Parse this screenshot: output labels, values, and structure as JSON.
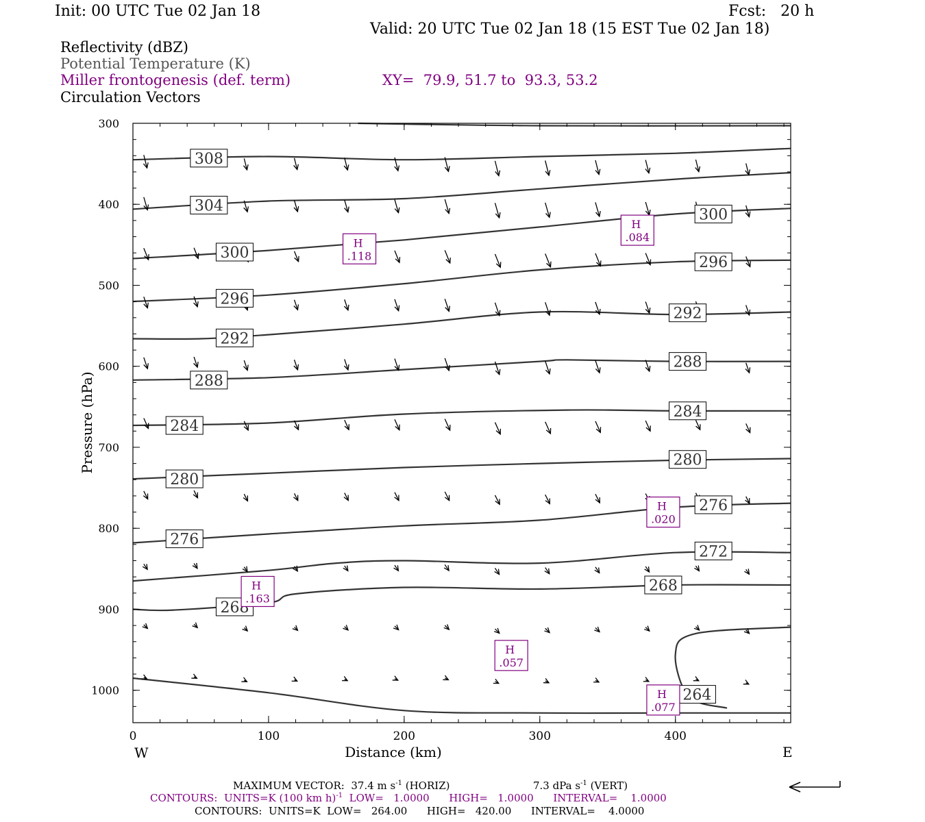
{
  "header": {
    "init": "Init: 00 UTC Tue 02 Jan 18",
    "fcst": "Fcst:   20 h",
    "valid": "Valid: 20 UTC Tue 02 Jan 18 (15 EST Tue 02 Jan 18)"
  },
  "legend": {
    "line1": "Reflectivity (dBZ)",
    "line2": "Potential Temperature (K)",
    "line3": "Miller frontogenesis (def. term)",
    "xy": "XY=  79.9, 51.7 to  93.3, 53.2",
    "line4": "Circulation Vectors"
  },
  "footer": {
    "max_vector_a": "MAXIMUM VECTOR:  37.4 m s",
    "max_vector_a_sup": "-1",
    "max_vector_b": " (HORIZ)",
    "max_vector_c": "7.3 dPa s",
    "max_vector_c_sup": "-1",
    "max_vector_d": " (VERT)",
    "contours1_a": "CONTOURS:  UNITS=K (100 km h)",
    "contours1_sup": "-1",
    "contours1_b": "  LOW=   1.0000      HIGH=   1.0000      INTERVAL=    1.0000",
    "contours2": "CONTOURS:  UNITS=K  LOW=   264.00      HIGH=   420.00      INTERVAL=    4.0000"
  },
  "colors": {
    "theta": "#333333",
    "frontogenesis": "#800080",
    "vectors": "#000000"
  },
  "chart_data": {
    "type": "cross-section",
    "ylabel": "Pressure (hPa)",
    "xlabel": "Distance (km)",
    "x_left_label": "W",
    "x_right_label": "E",
    "xlim": [
      0,
      485
    ],
    "ylim": [
      1040,
      300
    ],
    "y_scale": "linear, inverted",
    "xticks": [
      0,
      100,
      200,
      300,
      400
    ],
    "yticks": [
      300,
      400,
      500,
      600,
      700,
      800,
      900,
      1000
    ],
    "theta_contours": [
      {
        "level": 308,
        "label": "308",
        "label_at": [
          56,
          343
        ],
        "points": [
          [
            0,
            345
          ],
          [
            100,
            341
          ],
          [
            200,
            345
          ],
          [
            300,
            341
          ],
          [
            400,
            337
          ],
          [
            485,
            331
          ]
        ]
      },
      {
        "level": 304,
        "label": "304",
        "label_at": [
          56,
          401
        ],
        "points": [
          [
            0,
            406
          ],
          [
            100,
            396
          ],
          [
            200,
            393
          ],
          [
            300,
            381
          ],
          [
            400,
            369
          ],
          [
            485,
            361
          ]
        ]
      },
      {
        "level": 300,
        "label": "300",
        "label_at": [
          75,
          459
        ],
        "points": [
          [
            0,
            467
          ],
          [
            100,
            457
          ],
          [
            200,
            444
          ],
          [
            300,
            428
          ],
          [
            400,
            412
          ],
          [
            485,
            405
          ]
        ],
        "label2": "300",
        "label2_at": [
          428,
          412
        ]
      },
      {
        "level": 296,
        "label": "296",
        "label_at": [
          75,
          516
        ],
        "points": [
          [
            0,
            520
          ],
          [
            100,
            512
          ],
          [
            200,
            498
          ],
          [
            300,
            481
          ],
          [
            400,
            471
          ],
          [
            485,
            469
          ]
        ],
        "label2": "296",
        "label2_at": [
          428,
          471
        ]
      },
      {
        "level": 292,
        "label": "292",
        "label_at": [
          75,
          565
        ],
        "points": [
          [
            0,
            566
          ],
          [
            50,
            566
          ],
          [
            100,
            561
          ],
          [
            200,
            548
          ],
          [
            300,
            533
          ],
          [
            400,
            536
          ],
          [
            485,
            533
          ]
        ],
        "label2": "292",
        "label2_at": [
          409,
          534
        ]
      },
      {
        "level": 288,
        "label": "288",
        "label_at": [
          56,
          617
        ],
        "points": [
          [
            0,
            617
          ],
          [
            100,
            614
          ],
          [
            200,
            604
          ],
          [
            300,
            594
          ],
          [
            320,
            592
          ],
          [
            400,
            594
          ],
          [
            485,
            594
          ]
        ],
        "label2": "288",
        "label2_at": [
          409,
          594
        ]
      },
      {
        "level": 284,
        "label": "284",
        "label_at": [
          38,
          673
        ],
        "points": [
          [
            0,
            673
          ],
          [
            100,
            670
          ],
          [
            200,
            659
          ],
          [
            320,
            654
          ],
          [
            400,
            655
          ],
          [
            485,
            655
          ]
        ],
        "label2": "284",
        "label2_at": [
          409,
          655
        ]
      },
      {
        "level": 280,
        "label": "280",
        "label_at": [
          38,
          739
        ],
        "points": [
          [
            0,
            739
          ],
          [
            100,
            732
          ],
          [
            200,
            725
          ],
          [
            300,
            720
          ],
          [
            400,
            716
          ],
          [
            485,
            714
          ]
        ],
        "label2": "280",
        "label2_at": [
          409,
          715
        ]
      },
      {
        "level": 276,
        "label": "276",
        "label_at": [
          38,
          813
        ],
        "points": [
          [
            0,
            818
          ],
          [
            100,
            807
          ],
          [
            200,
            797
          ],
          [
            300,
            790
          ],
          [
            400,
            774
          ],
          [
            485,
            769
          ]
        ],
        "label2": "276",
        "label2_at": [
          428,
          771
        ]
      },
      {
        "level": 272,
        "label": "272",
        "label_at": [
          428,
          828
        ],
        "points": [
          [
            0,
            865
          ],
          [
            100,
            852
          ],
          [
            150,
            843
          ],
          [
            200,
            840
          ],
          [
            300,
            843
          ],
          [
            400,
            830
          ],
          [
            485,
            830
          ]
        ]
      },
      {
        "level": 268,
        "label": "268",
        "label_at": [
          75,
          897
        ],
        "points": [
          [
            0,
            900
          ],
          [
            30,
            901
          ],
          [
            100,
            892
          ],
          [
            120,
            881
          ],
          [
            200,
            873
          ],
          [
            300,
            875
          ],
          [
            400,
            870
          ],
          [
            485,
            870
          ]
        ],
        "label2": "268",
        "label2_at": [
          391,
          870
        ]
      },
      {
        "level": 264,
        "label": "264",
        "label_at": [
          416,
          1005
        ],
        "points": [
          [
            0,
            985
          ],
          [
            100,
            1003
          ],
          [
            200,
            1025
          ],
          [
            300,
            1028
          ],
          [
            400,
            1028
          ],
          [
            485,
            1028
          ]
        ]
      },
      {
        "level": 264,
        "label": "",
        "points": [
          [
            438,
            1022
          ],
          [
            410,
            1008
          ],
          [
            400,
            955
          ],
          [
            415,
            930
          ],
          [
            485,
            922
          ]
        ]
      }
    ],
    "frontogenesis_maxima": [
      {
        "label": "H",
        "value": ".118",
        "at": [
          167,
          455
        ]
      },
      {
        "label": "H",
        "value": ".084",
        "at": [
          372,
          432
        ]
      },
      {
        "label": "H",
        "value": ".020",
        "at": [
          391,
          780
        ]
      },
      {
        "label": "H",
        "value": ".163",
        "at": [
          92,
          878
        ]
      },
      {
        "label": "H",
        "value": ".057",
        "at": [
          279,
          957
        ]
      },
      {
        "label": "H",
        "value": ".077",
        "at": [
          391,
          1012
        ]
      }
    ]
  }
}
